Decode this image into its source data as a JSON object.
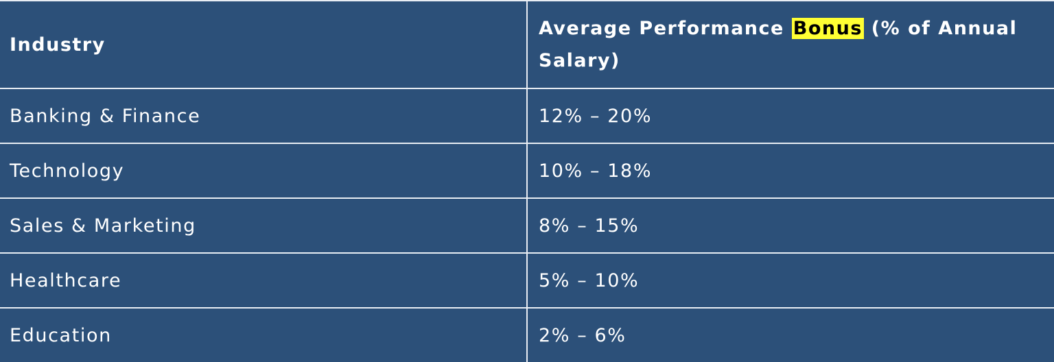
{
  "table": {
    "headers": {
      "industry": "Industry",
      "bonus_prefix": "Average Performance ",
      "bonus_highlight": "Bonus",
      "bonus_suffix": " (% of Annual Salary)"
    },
    "rows": [
      {
        "industry": "Banking & Finance",
        "bonus": "12% – 20%"
      },
      {
        "industry": "Technology",
        "bonus": "10% – 18%"
      },
      {
        "industry": "Sales & Marketing",
        "bonus": "8% – 15%"
      },
      {
        "industry": "Healthcare",
        "bonus": "5% – 10%"
      },
      {
        "industry": "Education",
        "bonus": "2% – 6%"
      }
    ]
  },
  "colors": {
    "table_background": "#2c5079",
    "border": "#e9eef4",
    "highlight": "#ffff33",
    "text": "#ffffff"
  }
}
